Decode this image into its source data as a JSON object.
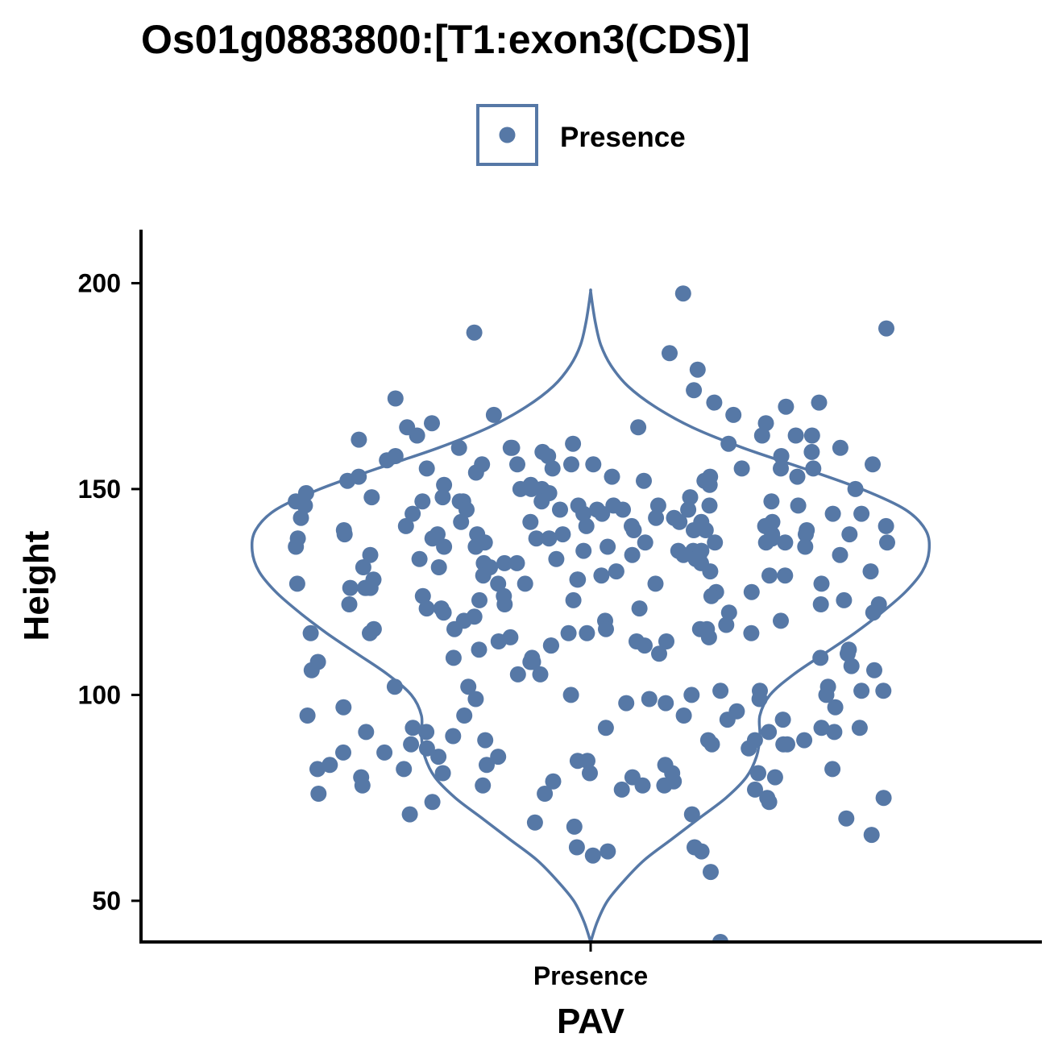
{
  "chart_data": {
    "type": "violin",
    "title": "Os01g0883800:[T1:exon3(CDS)]",
    "xlabel": "PAV",
    "ylabel": "Height",
    "categories": [
      "Presence"
    ],
    "legend": {
      "position": "top",
      "entries": [
        "Presence"
      ]
    },
    "color": "#5678A6",
    "ylim": [
      40,
      213
    ],
    "yticks": [
      50,
      100,
      150,
      200
    ],
    "grid": false,
    "density_profile": [
      [
        40,
        0.0
      ],
      [
        45,
        0.02
      ],
      [
        50,
        0.05
      ],
      [
        55,
        0.1
      ],
      [
        60,
        0.16
      ],
      [
        65,
        0.24
      ],
      [
        70,
        0.32
      ],
      [
        75,
        0.4
      ],
      [
        80,
        0.46
      ],
      [
        85,
        0.49
      ],
      [
        90,
        0.5
      ],
      [
        95,
        0.5
      ],
      [
        100,
        0.53
      ],
      [
        105,
        0.6
      ],
      [
        110,
        0.69
      ],
      [
        115,
        0.78
      ],
      [
        120,
        0.86
      ],
      [
        125,
        0.93
      ],
      [
        130,
        0.98
      ],
      [
        135,
        1.0
      ],
      [
        140,
        0.99
      ],
      [
        145,
        0.93
      ],
      [
        150,
        0.8
      ],
      [
        155,
        0.63
      ],
      [
        160,
        0.45
      ],
      [
        165,
        0.3
      ],
      [
        170,
        0.19
      ],
      [
        175,
        0.11
      ],
      [
        180,
        0.06
      ],
      [
        185,
        0.03
      ],
      [
        190,
        0.015
      ],
      [
        195,
        0.005
      ],
      [
        198,
        0.0
      ]
    ],
    "series": [
      {
        "name": "Presence",
        "values": [
          197.5,
          188,
          183,
          189,
          179,
          174,
          172,
          171,
          171,
          170,
          168,
          168,
          166,
          165,
          165,
          166,
          163,
          163,
          163,
          163,
          162,
          161,
          161,
          160,
          160,
          160,
          160,
          159,
          159,
          158,
          158,
          158,
          157,
          156,
          156,
          156,
          156,
          156,
          155,
          155,
          155,
          155,
          155,
          154,
          153,
          153,
          153,
          153,
          152,
          152,
          152,
          151,
          151,
          151,
          150,
          150,
          150,
          150,
          149,
          149,
          148,
          148,
          148,
          147,
          147,
          147,
          147,
          147,
          147,
          146,
          146,
          146,
          146,
          146,
          146,
          145,
          145,
          145,
          145,
          145,
          144,
          144,
          144,
          144,
          144,
          143,
          143,
          143,
          142,
          142,
          142,
          142,
          142,
          141,
          141,
          141,
          141,
          141,
          140,
          140,
          140,
          140,
          140,
          139,
          139,
          139,
          139,
          139,
          139,
          139,
          138,
          138,
          138,
          138,
          138,
          137,
          137,
          137,
          137,
          137,
          137,
          136,
          136,
          136,
          136,
          136,
          135,
          135,
          135,
          135,
          134,
          134,
          134,
          134,
          134,
          133,
          133,
          133,
          132,
          132,
          132,
          132,
          131,
          131,
          131,
          130,
          130,
          130,
          129,
          129,
          129,
          129,
          128,
          128,
          128,
          127,
          127,
          127,
          127,
          127,
          126,
          126,
          126,
          126,
          125,
          125,
          124,
          124,
          124,
          123,
          123,
          123,
          122,
          122,
          122,
          122,
          121,
          121,
          121,
          120,
          120,
          120,
          119,
          118,
          118,
          118,
          117,
          116,
          116,
          116,
          116,
          116,
          115,
          115,
          115,
          115,
          115,
          114,
          114,
          113,
          113,
          113,
          112,
          112,
          112,
          111,
          111,
          110,
          110,
          109,
          109,
          109,
          108,
          108,
          108,
          107,
          106,
          106,
          105,
          105,
          102,
          102,
          102,
          101,
          101,
          101,
          101,
          100,
          100,
          100,
          99,
          99,
          99,
          98,
          98,
          97,
          97,
          96,
          95,
          95,
          95,
          94,
          94,
          92,
          92,
          92,
          92,
          91,
          91,
          91,
          91,
          90,
          89,
          89,
          89,
          89,
          88,
          88,
          88,
          88,
          87,
          87,
          86,
          86,
          85,
          85,
          84,
          84,
          83,
          83,
          83,
          82,
          82,
          82,
          81,
          81,
          81,
          81,
          80,
          80,
          80,
          79,
          79,
          78,
          78,
          78,
          78,
          77,
          77,
          76,
          76,
          75,
          75,
          74,
          74,
          71,
          71,
          70,
          69,
          68,
          66,
          63,
          63,
          62,
          62,
          61,
          57,
          40
        ]
      }
    ]
  }
}
